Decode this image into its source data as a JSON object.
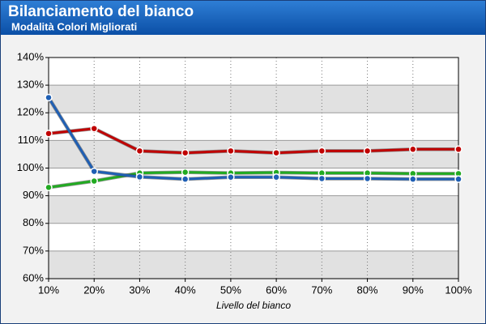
{
  "chart_data": {
    "type": "line",
    "title": "Bilanciamento del bianco",
    "subtitle": "Modalità Colori Migliorati",
    "xlabel": "Livello del bianco",
    "x": [
      10,
      20,
      30,
      40,
      50,
      60,
      70,
      80,
      90,
      100
    ],
    "series": [
      {
        "color": "#c00000",
        "values": [
          112.5,
          114.3,
          106.2,
          105.5,
          106.2,
          105.5,
          106.2,
          106.2,
          106.8,
          106.8
        ]
      },
      {
        "color": "#22aa22",
        "values": [
          93,
          95.3,
          98.2,
          98.5,
          98.2,
          98.4,
          98.2,
          98.2,
          98.0,
          98.0
        ]
      },
      {
        "color": "#1f5fb4",
        "values": [
          125.5,
          98.8,
          96.8,
          96.0,
          96.7,
          96.7,
          96.2,
          96.2,
          96.0,
          96.0
        ]
      }
    ],
    "xlim": [
      10,
      100
    ],
    "xticks": [
      {
        "value": 10,
        "label": "10%"
      },
      {
        "value": 20,
        "label": "20%"
      },
      {
        "value": 30,
        "label": "30%"
      },
      {
        "value": 40,
        "label": "40%"
      },
      {
        "value": 50,
        "label": "50%"
      },
      {
        "value": 60,
        "label": "60%"
      },
      {
        "value": 70,
        "label": "70%"
      },
      {
        "value": 80,
        "label": "80%"
      },
      {
        "value": 90,
        "label": "90%"
      },
      {
        "value": 100,
        "label": "100%"
      }
    ],
    "ylim": [
      60,
      140
    ],
    "yticks": [
      {
        "value": 60,
        "label": "60%"
      },
      {
        "value": 70,
        "label": "70%"
      },
      {
        "value": 80,
        "label": "80%"
      },
      {
        "value": 90,
        "label": "90%"
      },
      {
        "value": 100,
        "label": "100%"
      },
      {
        "value": 110,
        "label": "110%"
      },
      {
        "value": 120,
        "label": "120%"
      },
      {
        "value": 130,
        "label": "130%"
      },
      {
        "value": 140,
        "label": "140%"
      }
    ],
    "grid": true
  }
}
